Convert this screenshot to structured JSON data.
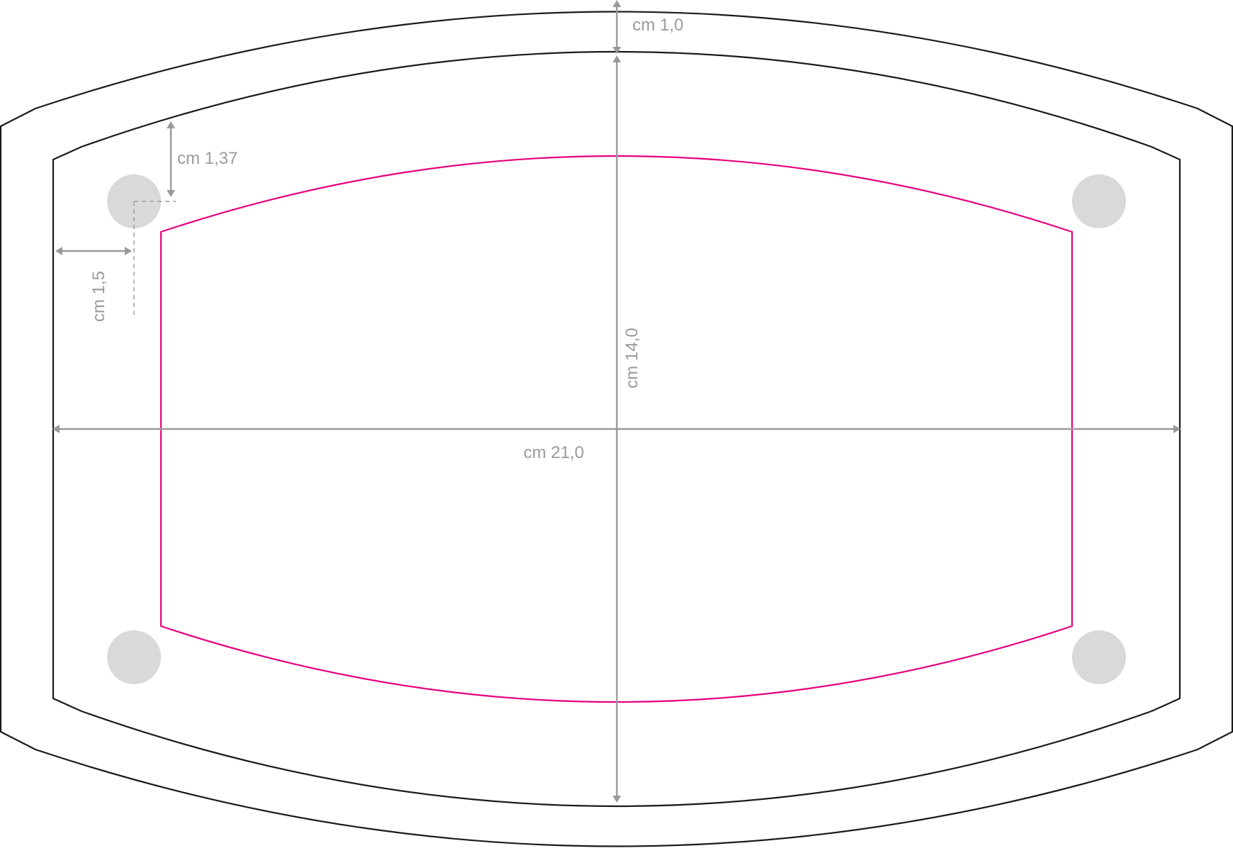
{
  "dimensions": {
    "margin_top": "cm 1,0",
    "height": "cm 14,0",
    "hole_offset_top": "cm 1,37",
    "hole_offset_side": "cm 1,5",
    "width": "cm 21,0"
  },
  "colors": {
    "outline": "#1a1a1a",
    "safe_zone": "#e6007e",
    "dimension": "#9a9a9a",
    "hole": "#d9d9d9"
  }
}
